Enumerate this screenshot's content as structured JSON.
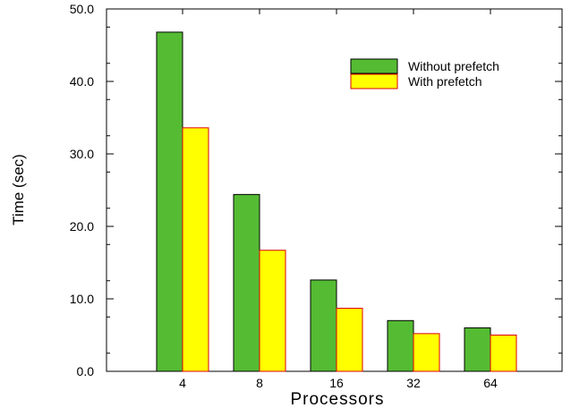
{
  "chart_data": {
    "type": "bar",
    "categories": [
      "4",
      "8",
      "16",
      "32",
      "64"
    ],
    "series": [
      {
        "name": "Without prefetch",
        "values": [
          46.8,
          24.4,
          12.6,
          7.0,
          6.0
        ],
        "color": "#55bb33",
        "edge": "#000000"
      },
      {
        "name": "With prefetch",
        "values": [
          33.6,
          16.7,
          8.7,
          5.2,
          5.0
        ],
        "color": "#ffff00",
        "edge": "#dd0000"
      }
    ],
    "xlabel": "Processors",
    "ylabel": "Time (sec)",
    "ylim": [
      0,
      50
    ],
    "yticks": [
      0,
      10,
      20,
      30,
      40,
      50
    ],
    "ytick_labels": [
      "0.0",
      "10.0",
      "20.0",
      "30.0",
      "40.0",
      "50.0"
    ],
    "legend_position": "top-right",
    "grid": false
  }
}
